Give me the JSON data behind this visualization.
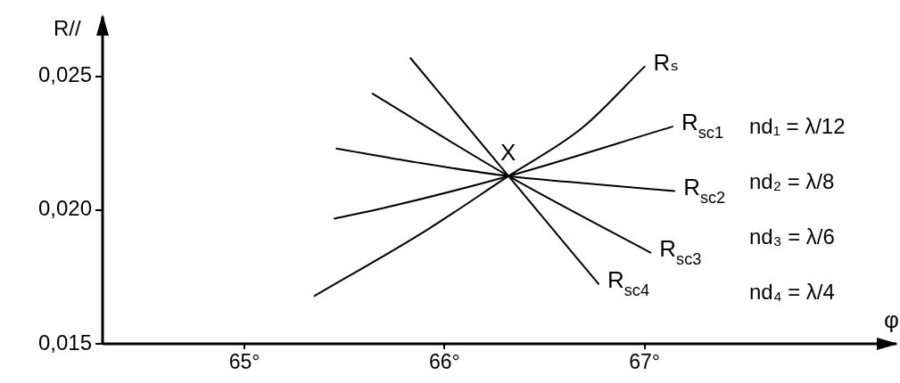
{
  "chart_data": {
    "type": "line",
    "xlabel": "φ",
    "ylabel": "R//",
    "xlim": [
      64.29,
      68.26
    ],
    "ylim": [
      0.015,
      0.02724
    ],
    "xticks": [
      {
        "value": 65,
        "label": "65°"
      },
      {
        "value": 66,
        "label": "66°"
      },
      {
        "value": 67,
        "label": "67°"
      }
    ],
    "yticks": [
      {
        "value": 0.015,
        "label": "0,015"
      },
      {
        "value": 0.02,
        "label": "0,020"
      },
      {
        "value": 0.025,
        "label": "0,025"
      }
    ],
    "grid": false,
    "legend": false,
    "marker": "none",
    "line_style": "solid",
    "series": [
      {
        "name": "Rₛ",
        "color": "#000000",
        "x": [
          65.35,
          65.9,
          66.32,
          66.69,
          67.0
        ],
        "values": [
          0.01679,
          0.0192,
          0.02127,
          0.02308,
          0.02536
        ]
      },
      {
        "name": "R$_{sc1}$",
        "color": "#000000",
        "x": [
          65.45,
          65.71,
          66.32,
          67.14
        ],
        "values": [
          0.01968,
          0.0201,
          0.02127,
          0.02312
        ]
      },
      {
        "name": "R$_{sc2}$",
        "color": "#000000",
        "x": [
          65.46,
          65.86,
          66.32,
          66.75,
          67.15
        ],
        "values": [
          0.0223,
          0.02178,
          0.02127,
          0.02097,
          0.02071
        ]
      },
      {
        "name": "R$_{sc3}$",
        "color": "#000000",
        "x": [
          65.64,
          66.32,
          67.03
        ],
        "values": [
          0.02435,
          0.02127,
          0.01841
        ]
      },
      {
        "name": "R$_{sc4}$",
        "color": "#000000",
        "x": [
          65.83,
          66.32,
          66.77
        ],
        "values": [
          0.02568,
          0.02127,
          0.01724
        ]
      }
    ],
    "annotations": [
      {
        "text": "X",
        "x": 66.32,
        "y": 0.02127
      },
      "nd₁ = λ/12",
      "nd₂ = λ/8",
      "nd₃ = λ/6",
      "nd₄ = λ/4"
    ]
  }
}
